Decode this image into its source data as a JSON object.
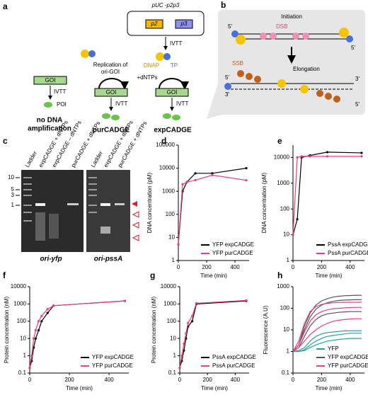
{
  "panel_a": {
    "letter": "a",
    "plasmid": "pUC -p2p3",
    "p2": "p2",
    "p3": "p3",
    "ivtt_top": "IVTT",
    "dnap": "DNAP",
    "tp": "TP",
    "replication": [
      "Replication of",
      "ori-GOI"
    ],
    "dntps": "+dNTPs",
    "goi": [
      "GOI",
      "GOI",
      "GOI"
    ],
    "ivtt": [
      "IVTT",
      "IVTT",
      "IVTT"
    ],
    "poi": "POI",
    "labels": [
      [
        "no DNA",
        "amplification"
      ],
      [
        "purCADGE"
      ],
      [
        "expCADGE"
      ]
    ]
  },
  "panel_b": {
    "letter": "b",
    "initiation": "Initiation",
    "dsb": "DSB",
    "ssb": "SSB",
    "elongation": "Elongation",
    "ends": [
      "5'",
      "5'",
      "3'",
      "5'",
      "3'",
      "5'"
    ]
  },
  "panel_c": {
    "letter": "c",
    "lanes": [
      "Ladder",
      "expCADGE + dNTPs",
      "expCADGE – dNTPs",
      "purCADGE + dNTPs",
      "Ladder",
      "expCADGE + dNTPs",
      "purCADGE + dNTPs"
    ],
    "sizes": [
      "10",
      "5",
      "3",
      "1"
    ],
    "gels": [
      "ori-yfp",
      "ori-pssA"
    ]
  },
  "chart_data": [
    {
      "type": "line",
      "panel": "d",
      "ylabel": "DNA concentration (pM)",
      "xlabel": "Time (min)",
      "log_y": true,
      "x": [
        0,
        30,
        60,
        120,
        240,
        480
      ],
      "xlim": [
        0,
        500
      ],
      "xticks": [
        0,
        200,
        400
      ],
      "ylim": [
        1,
        100000
      ],
      "yticks": [
        1,
        10,
        100,
        1000,
        10000,
        100000
      ],
      "series": [
        {
          "name": "YFP expCADGE",
          "color": "#000000",
          "values": [
            5,
            1000,
            2500,
            6000,
            6000,
            10000
          ]
        },
        {
          "name": "YFP purCADGE",
          "color": "#e8407a",
          "values": [
            5,
            2000,
            2500,
            3000,
            5000,
            3000
          ]
        }
      ]
    },
    {
      "type": "line",
      "panel": "e",
      "ylabel": "DNA concentration (pM)",
      "xlabel": "Time (min)",
      "log_y": true,
      "x": [
        0,
        30,
        60,
        120,
        240,
        480
      ],
      "xlim": [
        0,
        500
      ],
      "xticks": [
        0,
        200,
        400
      ],
      "ylim": [
        1,
        30000
      ],
      "yticks": [
        1,
        10,
        100,
        1000,
        10000
      ],
      "series": [
        {
          "name": "PssA expCADGE",
          "color": "#000000",
          "values": [
            10,
            40,
            10000,
            12000,
            16000,
            15000
          ]
        },
        {
          "name": "PssA purCADGE",
          "color": "#e8407a",
          "values": [
            10,
            10000,
            11000,
            11000,
            11000,
            11000
          ]
        }
      ]
    },
    {
      "type": "line",
      "panel": "f",
      "ylabel": "Protein concentration (nM)",
      "xlabel": "Time (min)",
      "log_y": true,
      "x": [
        0,
        10,
        20,
        30,
        45,
        60,
        90,
        120,
        480
      ],
      "xlim": [
        0,
        500
      ],
      "xticks": [
        0,
        200,
        400
      ],
      "ylim": [
        0.1,
        10000
      ],
      "yticks": [
        0.1,
        1,
        10,
        100,
        1000,
        10000
      ],
      "series": [
        {
          "name": "YFP expCADGE",
          "color": "#000000",
          "values": [
            0.2,
            0.5,
            3,
            10,
            30,
            100,
            300,
            800,
            1500
          ]
        },
        {
          "name": "YFP purCADGE",
          "color": "#e8407a",
          "values": [
            0.2,
            1,
            10,
            30,
            100,
            200,
            500,
            800,
            1500
          ]
        }
      ]
    },
    {
      "type": "line",
      "panel": "g",
      "ylabel": "Protein concentration (nM)",
      "xlabel": "Time (min)",
      "log_y": true,
      "x": [
        0,
        15,
        30,
        45,
        60,
        90,
        120,
        480
      ],
      "xlim": [
        0,
        500
      ],
      "xticks": [
        0,
        200,
        400
      ],
      "ylim": [
        0.1,
        10000
      ],
      "yticks": [
        0.1,
        1,
        10,
        100,
        1000,
        10000
      ],
      "series": [
        {
          "name": "PssA expCADGE",
          "color": "#000000",
          "values": [
            0.2,
            0.5,
            2,
            10,
            50,
            100,
            1000,
            1500
          ]
        },
        {
          "name": "PssA purCADGE",
          "color": "#e8407a",
          "values": [
            0.2,
            1,
            5,
            20,
            80,
            200,
            1100,
            1600
          ]
        }
      ]
    },
    {
      "type": "replicates",
      "panel": "h",
      "ylabel": "Fluorescence (A.U)",
      "xlabel": "Time (min)",
      "log_y": true,
      "x": [
        0,
        40,
        80,
        120,
        160,
        200,
        240,
        280,
        320,
        360,
        400,
        440,
        480
      ],
      "xlim": [
        0,
        500
      ],
      "xticks": [
        0,
        200,
        400
      ],
      "ylim": [
        0.1,
        1000
      ],
      "yticks": [
        0.1,
        1,
        10,
        100,
        1000
      ],
      "series": [
        {
          "name": "YFP",
          "color": "#2aa198",
          "replicates": [
            [
              1,
              1,
              1.2,
              2,
              3,
              4,
              5,
              5.5,
              6,
              6.5,
              7,
              7,
              7
            ],
            [
              1,
              1.1,
              1.5,
              3,
              5,
              6.5,
              7.5,
              8,
              8.5,
              9,
              9,
              9,
              9
            ],
            [
              1,
              1,
              1.1,
              1.5,
              2,
              2.5,
              3,
              3.3,
              3.6,
              3.8,
              4,
              4,
              4
            ]
          ]
        },
        {
          "name": "YFP expCADGE",
          "color": "#555555",
          "replicates": [
            [
              1,
              2,
              15,
              60,
              140,
              220,
              280,
              330,
              360,
              380,
              390,
              400,
              400
            ],
            [
              1,
              2,
              10,
              40,
              90,
              140,
              180,
              210,
              230,
              240,
              245,
              250,
              250
            ],
            [
              1,
              1.5,
              5,
              15,
              30,
              45,
              55,
              60,
              65,
              68,
              70,
              70,
              70
            ]
          ]
        },
        {
          "name": "YFP purCADGE",
          "color": "#e8407a",
          "replicates": [
            [
              1,
              3,
              20,
              70,
              120,
              150,
              170,
              180,
              185,
              190,
              190,
              190,
              190
            ],
            [
              1,
              2,
              8,
              25,
              50,
              70,
              85,
              95,
              100,
              105,
              108,
              110,
              110
            ],
            [
              1,
              1.5,
              3,
              6,
              10,
              15,
              20,
              25,
              28,
              30,
              32,
              33,
              33
            ]
          ]
        }
      ]
    }
  ]
}
